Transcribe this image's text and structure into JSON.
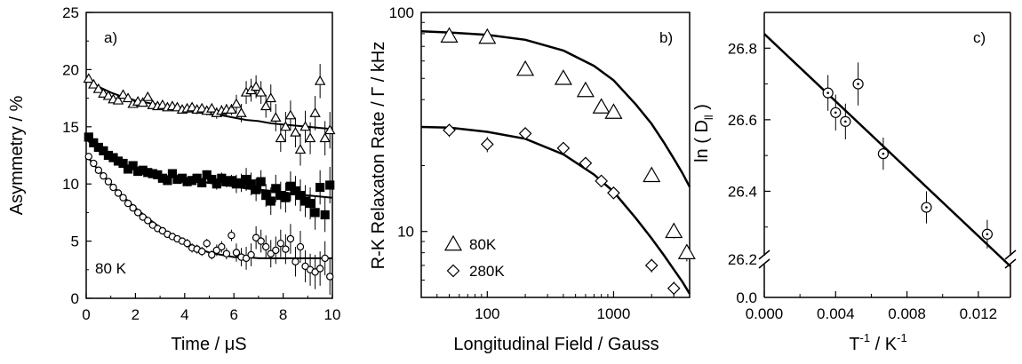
{
  "chart_data": [
    {
      "type": "scatter",
      "panel_label": "a)",
      "annotation": "80 K",
      "xlabel": "Time / μS",
      "ylabel": "Asymmetry / %",
      "xlim": [
        0,
        10
      ],
      "ylim": [
        0,
        25
      ],
      "x_ticks": [
        0,
        2,
        4,
        6,
        8,
        10
      ],
      "y_ticks": [
        0,
        5,
        10,
        15,
        20,
        25
      ],
      "grid": false,
      "series": [
        {
          "marker": "triangle-open",
          "x": [
            0.1,
            0.3,
            0.5,
            0.7,
            0.9,
            1.1,
            1.3,
            1.5,
            1.7,
            1.9,
            2.1,
            2.3,
            2.5,
            2.7,
            2.9,
            3.1,
            3.3,
            3.5,
            3.7,
            3.9,
            4.1,
            4.3,
            4.5,
            4.7,
            4.9,
            5.1,
            5.3,
            5.5,
            5.7,
            5.9,
            6.1,
            6.3,
            6.5,
            6.7,
            6.9,
            7.1,
            7.3,
            7.5,
            7.7,
            7.9,
            8.1,
            8.3,
            8.5,
            8.7,
            8.9,
            9.1,
            9.3,
            9.5,
            9.7,
            9.9
          ],
          "y": [
            19.2,
            18.7,
            18.3,
            17.9,
            17.7,
            17.4,
            17.3,
            17.8,
            17.5,
            17.0,
            17.2,
            17.1,
            17.6,
            16.9,
            16.8,
            16.9,
            16.7,
            16.8,
            16.7,
            16.5,
            16.6,
            16.7,
            16.5,
            16.6,
            16.4,
            16.6,
            16.2,
            16.4,
            16.5,
            16.5,
            17.0,
            16.2,
            18.0,
            18.2,
            18.5,
            18.0,
            16.8,
            17.5,
            15.8,
            14.0,
            15.0,
            16.0,
            14.5,
            13.0,
            15.0,
            14.0,
            16.2,
            19.0,
            14.0,
            14.7
          ],
          "err": [
            0.3,
            0.3,
            0.3,
            0.3,
            0.3,
            0.3,
            0.3,
            0.3,
            0.3,
            0.3,
            0.3,
            0.3,
            0.3,
            0.3,
            0.3,
            0.3,
            0.3,
            0.3,
            0.3,
            0.3,
            0.4,
            0.4,
            0.4,
            0.4,
            0.4,
            0.4,
            0.5,
            0.5,
            0.5,
            0.5,
            0.8,
            0.8,
            1.0,
            1.0,
            1.0,
            1.0,
            1.0,
            1.2,
            1.2,
            1.2,
            1.3,
            1.3,
            1.3,
            1.4,
            1.4,
            1.4,
            1.5,
            1.5,
            1.5,
            1.6
          ]
        },
        {
          "marker": "square-filled",
          "x": [
            0.1,
            0.3,
            0.5,
            0.7,
            0.9,
            1.1,
            1.3,
            1.5,
            1.7,
            1.9,
            2.1,
            2.3,
            2.5,
            2.7,
            2.9,
            3.1,
            3.3,
            3.5,
            3.7,
            3.9,
            4.1,
            4.3,
            4.5,
            4.7,
            4.9,
            5.1,
            5.3,
            5.5,
            5.7,
            5.9,
            6.1,
            6.3,
            6.5,
            6.7,
            6.9,
            7.1,
            7.3,
            7.5,
            7.7,
            7.9,
            8.1,
            8.3,
            8.5,
            8.7,
            8.9,
            9.1,
            9.3,
            9.5,
            9.7,
            9.9
          ],
          "y": [
            14.1,
            13.6,
            13.2,
            12.9,
            12.5,
            12.3,
            12.0,
            11.8,
            11.3,
            11.6,
            11.1,
            11.2,
            11.0,
            10.9,
            10.8,
            10.5,
            10.3,
            10.9,
            10.4,
            10.5,
            10.2,
            10.3,
            10.5,
            10.1,
            10.8,
            10.4,
            10.0,
            10.5,
            10.2,
            10.3,
            10.0,
            10.1,
            10.4,
            10.0,
            9.5,
            10.2,
            9.0,
            8.5,
            9.6,
            9.0,
            8.8,
            9.8,
            9.4,
            9.0,
            8.5,
            8.3,
            7.5,
            9.7,
            7.3,
            9.9
          ],
          "err": [
            0.3,
            0.3,
            0.3,
            0.3,
            0.3,
            0.3,
            0.3,
            0.3,
            0.3,
            0.3,
            0.3,
            0.3,
            0.3,
            0.3,
            0.3,
            0.3,
            0.3,
            0.3,
            0.3,
            0.3,
            0.4,
            0.4,
            0.4,
            0.4,
            0.4,
            0.4,
            0.5,
            0.5,
            0.5,
            0.5,
            0.8,
            0.8,
            1.0,
            1.0,
            1.0,
            1.0,
            1.0,
            1.2,
            1.2,
            1.2,
            1.3,
            1.3,
            1.3,
            1.4,
            1.4,
            1.4,
            1.5,
            1.5,
            1.5,
            1.6
          ]
        },
        {
          "marker": "circle-open",
          "x": [
            0.1,
            0.3,
            0.5,
            0.7,
            0.9,
            1.1,
            1.3,
            1.5,
            1.7,
            1.9,
            2.1,
            2.3,
            2.5,
            2.7,
            2.9,
            3.1,
            3.3,
            3.5,
            3.7,
            3.9,
            4.1,
            4.3,
            4.5,
            4.7,
            4.9,
            5.1,
            5.3,
            5.5,
            5.7,
            5.9,
            6.1,
            6.3,
            6.5,
            6.7,
            6.9,
            7.1,
            7.3,
            7.5,
            7.7,
            7.9,
            8.1,
            8.3,
            8.5,
            8.7,
            8.9,
            9.1,
            9.3,
            9.5,
            9.7,
            9.9
          ],
          "y": [
            12.4,
            11.8,
            11.2,
            10.7,
            10.2,
            9.7,
            9.2,
            8.8,
            8.3,
            7.9,
            7.5,
            7.1,
            6.8,
            6.4,
            6.1,
            5.9,
            5.6,
            5.4,
            5.2,
            5.0,
            4.8,
            4.4,
            4.3,
            4.1,
            4.8,
            3.8,
            4.2,
            4.5,
            3.9,
            5.5,
            4.0,
            3.6,
            3.5,
            3.8,
            5.3,
            5.0,
            4.5,
            3.9,
            4.2,
            4.8,
            4.3,
            5.2,
            3.2,
            4.5,
            2.8,
            2.5,
            2.3,
            2.6,
            3.5,
            1.9
          ],
          "err": [
            0.3,
            0.3,
            0.3,
            0.3,
            0.3,
            0.3,
            0.3,
            0.3,
            0.3,
            0.3,
            0.3,
            0.3,
            0.3,
            0.3,
            0.3,
            0.3,
            0.3,
            0.3,
            0.3,
            0.3,
            0.4,
            0.4,
            0.4,
            0.4,
            0.4,
            0.4,
            0.5,
            0.5,
            0.5,
            0.5,
            0.8,
            0.8,
            1.0,
            1.0,
            1.0,
            1.0,
            1.0,
            1.2,
            1.2,
            1.2,
            1.3,
            1.3,
            1.3,
            1.4,
            1.4,
            1.4,
            1.5,
            1.5,
            1.5,
            1.6
          ]
        }
      ],
      "fit_lines": [
        {
          "x": [
            0,
            0.5,
            1,
            1.5,
            2,
            2.5,
            3,
            3.5,
            4,
            4.5,
            5,
            5.5,
            6,
            6.5,
            7,
            7.5,
            8,
            8.5,
            9,
            9.5,
            10
          ],
          "y": [
            19.2,
            18.5,
            18.0,
            17.6,
            17.3,
            17.1,
            16.9,
            16.7,
            16.5,
            16.3,
            16.1,
            16.0,
            15.8,
            15.6,
            15.5,
            15.3,
            15.2,
            15.1,
            15.0,
            14.9,
            14.8
          ]
        },
        {
          "x": [
            0,
            0.5,
            1,
            1.5,
            2,
            2.5,
            3,
            3.5,
            4,
            4.5,
            5,
            5.5,
            6,
            6.5,
            7,
            7.5,
            8,
            8.5,
            9,
            9.5,
            10
          ],
          "y": [
            13.9,
            13.0,
            12.3,
            11.7,
            11.3,
            11.0,
            10.8,
            10.6,
            10.4,
            10.2,
            10.1,
            9.9,
            9.8,
            9.6,
            9.5,
            9.4,
            9.3,
            9.1,
            9.0,
            8.9,
            8.8
          ]
        },
        {
          "x": [
            0,
            0.5,
            1,
            1.5,
            2,
            2.5,
            3,
            3.5,
            4,
            4.5,
            5,
            5.5,
            6,
            6.5,
            7,
            7.5,
            8,
            8.5,
            9,
            9.5,
            10
          ],
          "y": [
            12.5,
            11.2,
            10.0,
            8.9,
            7.9,
            7.0,
            6.2,
            5.5,
            4.9,
            4.4,
            4.0,
            3.8,
            3.6,
            3.6,
            3.5,
            3.5,
            3.5,
            3.5,
            3.5,
            3.5,
            3.5
          ]
        }
      ]
    },
    {
      "type": "scatter",
      "panel_label": "b)",
      "xlabel": "Longitudinal Field / Gauss",
      "ylabel": "R-K Relaxaton Rate / Γ / kHz",
      "xscale": "log",
      "yscale": "log",
      "xlim": [
        30,
        4000
      ],
      "ylim": [
        5,
        100
      ],
      "x_ticks": [
        100,
        1000
      ],
      "x_tick_labels": [
        "100",
        "1000"
      ],
      "y_ticks": [
        10,
        100
      ],
      "y_tick_labels": [
        "10",
        "100"
      ],
      "grid": false,
      "legend_position": "bottom-left",
      "series": [
        {
          "name": "80K",
          "marker": "triangle-open",
          "x": [
            50,
            100,
            200,
            400,
            600,
            800,
            1000,
            2000,
            3000,
            3800
          ],
          "y": [
            78,
            77,
            55,
            50,
            44,
            37,
            35,
            18,
            10,
            8
          ],
          "err": [
            4,
            4,
            3,
            3,
            2.5,
            2,
            2,
            1,
            0.7,
            0.7
          ]
        },
        {
          "name": "280K",
          "marker": "diamond-open",
          "x": [
            50,
            100,
            200,
            400,
            600,
            800,
            1000,
            2000,
            3000
          ],
          "y": [
            29,
            25,
            28,
            24,
            20.5,
            17,
            15,
            7,
            5.5
          ],
          "err": [
            2,
            2,
            1.5,
            1.2,
            1.0,
            0.9,
            0.8,
            0.5,
            0.4
          ]
        }
      ],
      "fit_lines": [
        {
          "x": [
            30,
            50,
            100,
            200,
            400,
            700,
            1000,
            1500,
            2000,
            2500,
            3000,
            3500,
            4000
          ],
          "y": [
            82,
            81,
            79,
            75,
            67,
            57,
            49,
            38,
            31,
            25.5,
            21.5,
            18.5,
            16
          ]
        },
        {
          "x": [
            30,
            50,
            100,
            200,
            400,
            700,
            1000,
            1500,
            2000,
            2500,
            3000,
            3500,
            4000
          ],
          "y": [
            30,
            29.8,
            28.5,
            26.5,
            22.5,
            18.2,
            15.2,
            11.5,
            9.3,
            7.8,
            6.7,
            5.9,
            5.2
          ]
        }
      ]
    },
    {
      "type": "scatter",
      "panel_label": "c)",
      "xlabel": "T -1 / K -1",
      "ylabel": "ln ( D ll )",
      "xlim": [
        0.0,
        0.0138
      ],
      "ylim": [
        26.2,
        26.9
      ],
      "axis_break": true,
      "x_ticks": [
        0.0,
        0.004,
        0.008,
        0.012
      ],
      "x_tick_labels": [
        "0.000",
        "0.004",
        "0.008",
        "0.012"
      ],
      "y_ticks": [
        26.2,
        26.4,
        26.6,
        26.8
      ],
      "y_tick_labels": [
        "26.2",
        "26.4",
        "26.6",
        "26.8"
      ],
      "y_break_label": "0.0",
      "grid": false,
      "series": [
        {
          "marker": "circle-dot",
          "x": [
            0.00357,
            0.004,
            0.00455,
            0.00526,
            0.00667,
            0.00909,
            0.0125
          ],
          "y": [
            26.675,
            26.62,
            26.595,
            26.7,
            26.505,
            26.355,
            26.28
          ],
          "err": [
            0.05,
            0.05,
            0.05,
            0.06,
            0.045,
            0.045,
            0.04
          ]
        }
      ],
      "fit_lines": [
        {
          "x": [
            0.0,
            0.0138
          ],
          "y": [
            26.84,
            26.19
          ]
        }
      ]
    }
  ]
}
